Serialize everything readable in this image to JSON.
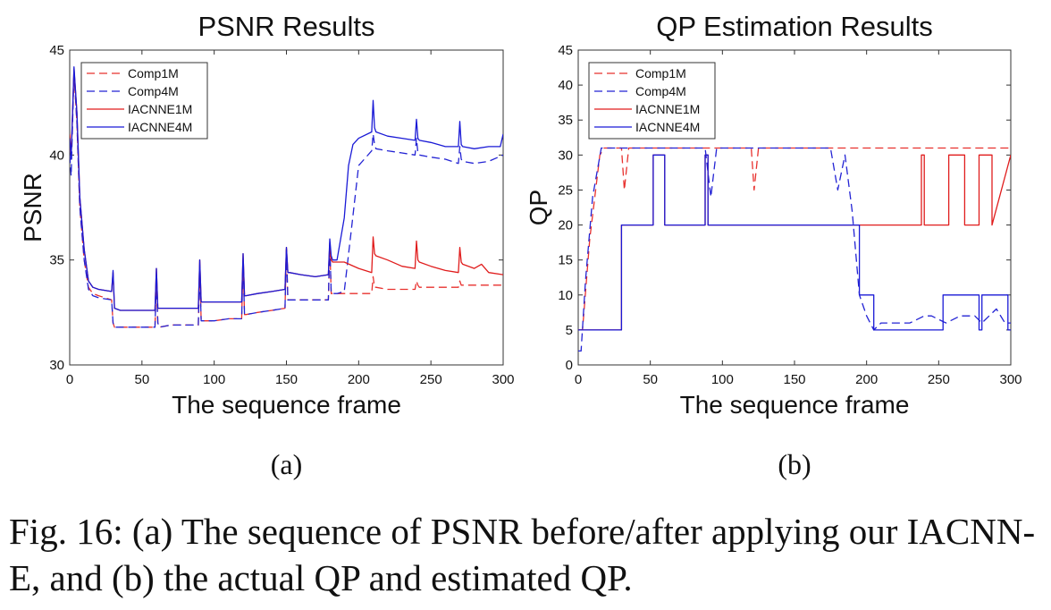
{
  "chart_data": [
    {
      "type": "line",
      "title": "PSNR Results",
      "xlabel": "The sequence frame",
      "ylabel": "PSNR",
      "xlim": [
        0,
        300
      ],
      "ylim": [
        30,
        45
      ],
      "xticks": [
        0,
        50,
        100,
        150,
        200,
        250,
        300
      ],
      "yticks": [
        30,
        35,
        40,
        45
      ],
      "legend_position": "top-left",
      "grid": false,
      "panel_label": "(a)",
      "series": [
        {
          "name": "Comp1M",
          "color": "#e8312e",
          "dash": "dashed",
          "x": [
            0,
            1,
            3,
            5,
            7,
            10,
            13,
            16,
            20,
            29,
            30,
            31,
            35,
            45,
            59,
            60,
            61,
            62,
            70,
            80,
            89,
            90,
            91,
            92,
            100,
            110,
            119,
            120,
            121,
            122,
            130,
            140,
            149,
            150,
            151,
            152,
            160,
            170,
            179,
            180,
            181,
            182,
            190,
            200,
            209,
            210,
            211,
            212,
            220,
            230,
            239,
            240,
            241,
            242,
            250,
            260,
            269,
            270,
            271,
            272,
            280,
            290,
            300
          ],
          "values": [
            40.5,
            39.8,
            43.9,
            41.5,
            37.5,
            35.0,
            33.7,
            33.4,
            33.3,
            33.1,
            32.0,
            31.8,
            31.8,
            31.8,
            31.8,
            34.2,
            32.0,
            31.8,
            31.9,
            31.9,
            31.9,
            34.6,
            32.1,
            32.1,
            32.1,
            32.2,
            32.2,
            35.0,
            32.4,
            32.4,
            32.5,
            32.6,
            32.7,
            35.5,
            33.1,
            33.1,
            33.1,
            33.1,
            33.1,
            35.7,
            33.4,
            33.4,
            33.4,
            33.4,
            33.4,
            34.2,
            33.7,
            33.7,
            33.6,
            33.6,
            33.6,
            34.0,
            33.8,
            33.7,
            33.7,
            33.7,
            33.7,
            34.0,
            33.8,
            33.8,
            33.8,
            33.8,
            33.8
          ]
        },
        {
          "name": "Comp4M",
          "color": "#2323d4",
          "dash": "dashed",
          "x": [
            0,
            1,
            3,
            5,
            7,
            10,
            13,
            16,
            20,
            29,
            30,
            31,
            35,
            45,
            59,
            60,
            61,
            62,
            70,
            80,
            89,
            90,
            91,
            92,
            100,
            110,
            119,
            120,
            121,
            122,
            130,
            140,
            149,
            150,
            151,
            152,
            160,
            170,
            179,
            180,
            181,
            182,
            185,
            190,
            195,
            200,
            209,
            210,
            211,
            212,
            220,
            230,
            239,
            240,
            241,
            242,
            250,
            260,
            269,
            270,
            271,
            272,
            280,
            290,
            300
          ],
          "values": [
            40.0,
            39.0,
            44.0,
            41.5,
            37.5,
            35.0,
            33.6,
            33.3,
            33.2,
            33.1,
            32.0,
            31.8,
            31.8,
            31.8,
            31.8,
            34.1,
            32.0,
            31.8,
            31.9,
            31.9,
            31.9,
            34.5,
            32.1,
            32.1,
            32.1,
            32.2,
            32.2,
            35.0,
            32.4,
            32.4,
            32.5,
            32.6,
            32.7,
            35.6,
            33.1,
            33.1,
            33.1,
            33.1,
            33.1,
            35.8,
            33.4,
            33.4,
            33.4,
            33.5,
            36.5,
            39.5,
            40.2,
            41.0,
            40.5,
            40.3,
            40.2,
            40.1,
            40.0,
            40.8,
            40.1,
            40.0,
            39.9,
            39.8,
            39.6,
            40.4,
            39.8,
            39.7,
            39.6,
            39.7,
            40.0
          ]
        },
        {
          "name": "IACNNE1M",
          "color": "#e01c1c",
          "dash": "solid",
          "x": [
            0,
            1,
            3,
            5,
            7,
            10,
            13,
            16,
            20,
            29,
            30,
            31,
            35,
            45,
            59,
            60,
            61,
            62,
            70,
            80,
            89,
            90,
            91,
            92,
            100,
            110,
            119,
            120,
            121,
            122,
            130,
            140,
            149,
            150,
            151,
            152,
            160,
            170,
            179,
            180,
            181,
            182,
            190,
            200,
            209,
            210,
            211,
            212,
            220,
            230,
            239,
            240,
            241,
            242,
            250,
            260,
            269,
            270,
            271,
            272,
            280,
            285,
            290,
            300
          ],
          "values": [
            41.0,
            40.0,
            44.1,
            42.0,
            38.0,
            35.5,
            34.0,
            33.7,
            33.6,
            33.5,
            34.4,
            32.7,
            32.6,
            32.6,
            32.6,
            34.6,
            32.7,
            32.7,
            32.7,
            32.7,
            32.7,
            35.0,
            33.0,
            33.0,
            33.0,
            33.0,
            33.0,
            35.3,
            33.3,
            33.3,
            33.4,
            33.5,
            33.6,
            35.6,
            34.4,
            34.4,
            34.3,
            34.2,
            34.3,
            35.8,
            35.0,
            34.9,
            34.9,
            34.6,
            34.4,
            36.1,
            35.3,
            35.2,
            35.0,
            34.7,
            34.6,
            35.9,
            35.0,
            34.9,
            34.7,
            34.5,
            34.4,
            35.6,
            34.9,
            34.8,
            34.6,
            34.8,
            34.4,
            34.3
          ]
        },
        {
          "name": "IACNNE4M",
          "color": "#1a1ad6",
          "dash": "solid",
          "x": [
            0,
            1,
            3,
            5,
            7,
            10,
            13,
            16,
            20,
            29,
            30,
            31,
            35,
            45,
            59,
            60,
            61,
            62,
            70,
            80,
            89,
            90,
            91,
            92,
            100,
            110,
            119,
            120,
            121,
            122,
            130,
            140,
            149,
            150,
            151,
            152,
            160,
            170,
            179,
            180,
            181,
            182,
            185,
            190,
            193,
            196,
            200,
            209,
            210,
            211,
            212,
            220,
            230,
            239,
            240,
            241,
            242,
            250,
            260,
            269,
            270,
            271,
            272,
            280,
            290,
            298,
            300
          ],
          "values": [
            40.8,
            39.8,
            44.2,
            42.0,
            38.0,
            35.5,
            34.0,
            33.7,
            33.6,
            33.5,
            34.5,
            32.7,
            32.6,
            32.6,
            32.6,
            34.6,
            32.7,
            32.7,
            32.7,
            32.7,
            32.7,
            35.0,
            33.0,
            33.0,
            33.0,
            33.0,
            33.0,
            35.3,
            33.3,
            33.3,
            33.4,
            33.5,
            33.6,
            35.6,
            34.4,
            34.4,
            34.3,
            34.2,
            34.3,
            36.0,
            35.2,
            35.0,
            35.0,
            37.0,
            39.5,
            40.5,
            40.8,
            41.1,
            42.6,
            41.3,
            41.1,
            40.9,
            40.8,
            40.7,
            41.7,
            40.8,
            40.7,
            40.6,
            40.4,
            40.4,
            41.6,
            40.5,
            40.4,
            40.3,
            40.4,
            40.4,
            41.0
          ]
        }
      ]
    },
    {
      "type": "line",
      "title": "QP Estimation Results",
      "xlabel": "The sequence frame",
      "ylabel": "QP",
      "xlim": [
        0,
        300
      ],
      "ylim": [
        0,
        45
      ],
      "xticks": [
        0,
        50,
        100,
        150,
        200,
        250,
        300
      ],
      "yticks": [
        0,
        5,
        10,
        15,
        20,
        25,
        30,
        35,
        40,
        45
      ],
      "legend_position": "top-left",
      "grid": false,
      "panel_label": "(b)",
      "series": [
        {
          "name": "Comp1M",
          "color": "#e8312e",
          "dash": "dashed",
          "x": [
            0,
            3,
            8,
            15,
            18,
            30,
            32,
            35,
            60,
            62,
            90,
            120,
            122,
            125,
            180,
            300
          ],
          "values": [
            5,
            5,
            18,
            30,
            31,
            31,
            25,
            31,
            31,
            31,
            31,
            31,
            25,
            31,
            31,
            31
          ]
        },
        {
          "name": "Comp4M",
          "color": "#2323d4",
          "dash": "dashed",
          "x": [
            0,
            2,
            5,
            10,
            16,
            30,
            50,
            60,
            62,
            88,
            92,
            96,
            120,
            175,
            180,
            185,
            190,
            195,
            200,
            205,
            210,
            220,
            230,
            240,
            245,
            255,
            265,
            275,
            280,
            285,
            290,
            296,
            300
          ],
          "values": [
            2,
            2,
            12,
            24,
            31,
            31,
            31,
            31,
            31,
            31,
            24,
            31,
            31,
            31,
            25,
            30,
            22,
            10,
            7,
            5,
            6,
            6,
            6,
            7,
            7,
            6,
            7,
            7,
            6,
            7,
            8,
            6,
            6
          ]
        },
        {
          "name": "IACNNE1M",
          "color": "#e01c1c",
          "dash": "solid",
          "x": [
            0,
            30,
            30,
            52,
            52,
            60,
            60,
            88,
            88,
            90,
            90,
            238,
            238,
            240,
            240,
            257,
            257,
            268,
            268,
            278,
            278,
            287,
            287,
            300
          ],
          "values": [
            5,
            5,
            20,
            20,
            30,
            30,
            20,
            20,
            30,
            30,
            20,
            20,
            30,
            30,
            20,
            20,
            30,
            30,
            20,
            20,
            30,
            30,
            20,
            30
          ]
        },
        {
          "name": "IACNNE4M",
          "color": "#1a1ad6",
          "dash": "solid",
          "x": [
            0,
            30,
            30,
            52,
            52,
            60,
            60,
            88,
            88,
            90,
            90,
            195,
            195,
            205,
            205,
            253,
            253,
            278,
            278,
            280,
            280,
            298,
            298,
            300
          ],
          "values": [
            5,
            5,
            20,
            20,
            30,
            30,
            20,
            20,
            30,
            30,
            20,
            20,
            10,
            10,
            5,
            5,
            10,
            10,
            5,
            5,
            10,
            10,
            5,
            5
          ]
        }
      ]
    }
  ],
  "caption": "Fig. 16: (a) The sequence of PSNR before/after applying our IACNN-E, and (b) the actual QP and estimated QP."
}
